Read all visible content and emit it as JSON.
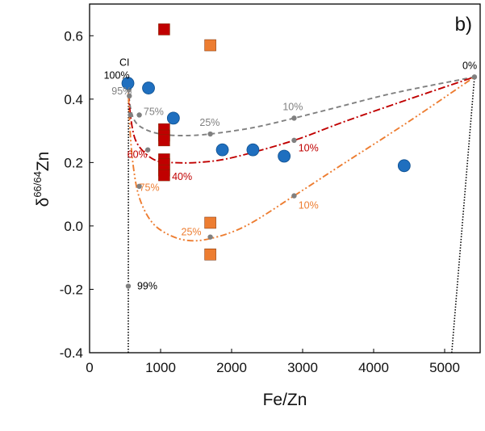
{
  "chart_data": {
    "type": "scatter",
    "panel_label": "b)",
    "xlabel": "Fe/Zn",
    "ylabel": "δ66/64Zn",
    "ylabel_parts": {
      "main": "δ",
      "sup": "66/64",
      "tail": "Zn"
    },
    "xlim": [
      0,
      5500
    ],
    "ylim": [
      -0.4,
      0.7
    ],
    "x_ticks": [
      0,
      1000,
      2000,
      3000,
      4000,
      5000
    ],
    "y_ticks": [
      0.6,
      0.4,
      0.2,
      0.0,
      -0.2,
      -0.4
    ],
    "x_tick_labels": [
      "0",
      "1000",
      "2000",
      "3000",
      "4000",
      "5000"
    ],
    "y_tick_labels": [
      "0.6",
      "0.4",
      "0.2",
      "0.0",
      "-0.2",
      "-0.4"
    ],
    "grid": false,
    "colors": {
      "blue": "#1f6fbf",
      "red": "#c00000",
      "orange": "#ed7d31",
      "gray": "#808080",
      "black": "#000000"
    },
    "series": [
      {
        "name": "blue circles",
        "marker": "circle",
        "color": "#1f6fbf",
        "points": [
          [
            540,
            0.45
          ],
          [
            830,
            0.435
          ],
          [
            1180,
            0.34
          ],
          [
            1870,
            0.24
          ],
          [
            2300,
            0.24
          ],
          [
            2740,
            0.22
          ],
          [
            4430,
            0.19
          ]
        ]
      },
      {
        "name": "red squares",
        "marker": "square",
        "color": "#c00000",
        "points": [
          [
            1050,
            0.62
          ],
          [
            1050,
            0.305
          ],
          [
            1050,
            0.285
          ],
          [
            1050,
            0.27
          ],
          [
            1050,
            0.21
          ],
          [
            1050,
            0.195
          ],
          [
            1050,
            0.175
          ],
          [
            1050,
            0.16
          ]
        ]
      },
      {
        "name": "orange squares",
        "marker": "square",
        "color": "#ed7d31",
        "points": [
          [
            1700,
            0.57
          ],
          [
            1700,
            0.01
          ],
          [
            1700,
            -0.09
          ]
        ]
      }
    ],
    "curves": [
      {
        "name": "gray mixing curve",
        "color": "#808080",
        "style": "dashed",
        "points": [
          [
            540,
            0.46
          ],
          [
            570,
            0.38
          ],
          [
            640,
            0.33
          ],
          [
            780,
            0.305
          ],
          [
            1000,
            0.29
          ],
          [
            1300,
            0.285
          ],
          [
            1700,
            0.29
          ],
          [
            2300,
            0.31
          ],
          [
            2880,
            0.34
          ],
          [
            3500,
            0.375
          ],
          [
            4300,
            0.42
          ],
          [
            5420,
            0.47
          ]
        ]
      },
      {
        "name": "red mixing curve",
        "color": "#c00000",
        "style": "dash-dot",
        "points": [
          [
            540,
            0.46
          ],
          [
            570,
            0.36
          ],
          [
            640,
            0.275
          ],
          [
            780,
            0.23
          ],
          [
            950,
            0.205
          ],
          [
            1150,
            0.2
          ],
          [
            1500,
            0.2
          ],
          [
            2000,
            0.215
          ],
          [
            2880,
            0.27
          ],
          [
            3600,
            0.33
          ],
          [
            4500,
            0.4
          ],
          [
            5420,
            0.47
          ]
        ]
      },
      {
        "name": "orange mixing curve",
        "color": "#ed7d31",
        "style": "dash-dot-dot",
        "points": [
          [
            540,
            0.46
          ],
          [
            570,
            0.3
          ],
          [
            620,
            0.18
          ],
          [
            700,
            0.09
          ],
          [
            850,
            0.02
          ],
          [
            1050,
            -0.02
          ],
          [
            1350,
            -0.045
          ],
          [
            1700,
            -0.04
          ],
          [
            2200,
            0.0
          ],
          [
            2880,
            0.095
          ],
          [
            3600,
            0.2
          ],
          [
            4500,
            0.33
          ],
          [
            5420,
            0.47
          ]
        ]
      }
    ],
    "boundary_lines": [
      {
        "name": "left endmember line",
        "points": [
          [
            545,
            -0.4
          ],
          [
            548,
            0.46
          ]
        ]
      },
      {
        "name": "right endmember line",
        "points": [
          [
            5100,
            -0.4
          ],
          [
            5420,
            0.47
          ]
        ]
      }
    ],
    "gray_points": [
      [
        545,
        0.46
      ],
      [
        555,
        0.43
      ],
      [
        560,
        0.41
      ],
      [
        575,
        0.35
      ],
      [
        700,
        0.35
      ],
      [
        820,
        0.24
      ],
      [
        700,
        0.125
      ],
      [
        1050,
        0.2
      ],
      [
        1700,
        0.29
      ],
      [
        2880,
        0.34
      ],
      [
        2880,
        0.27
      ],
      [
        2880,
        0.095
      ],
      [
        1700,
        -0.035
      ],
      [
        545,
        -0.19
      ],
      [
        5420,
        0.47
      ]
    ],
    "annotations": [
      {
        "text": "CI",
        "x": 420,
        "y": 0.505,
        "color": "#000000"
      },
      {
        "text": "100%",
        "x": 200,
        "y": 0.465,
        "color": "#000000"
      },
      {
        "text": "95%",
        "x": 310,
        "y": 0.415,
        "color": "#808080"
      },
      {
        "text": "75%",
        "x": 760,
        "y": 0.35,
        "color": "#808080"
      },
      {
        "text": "25%",
        "x": 1550,
        "y": 0.315,
        "color": "#808080"
      },
      {
        "text": "10%",
        "x": 2720,
        "y": 0.365,
        "color": "#808080"
      },
      {
        "text": "60%",
        "x": 530,
        "y": 0.215,
        "color": "#c00000"
      },
      {
        "text": "40%",
        "x": 1160,
        "y": 0.145,
        "color": "#c00000"
      },
      {
        "text": "10%",
        "x": 2940,
        "y": 0.235,
        "color": "#c00000"
      },
      {
        "text": "75%",
        "x": 700,
        "y": 0.11,
        "color": "#ed7d31"
      },
      {
        "text": "25%",
        "x": 1290,
        "y": -0.03,
        "color": "#ed7d31"
      },
      {
        "text": "10%",
        "x": 2940,
        "y": 0.055,
        "color": "#ed7d31"
      },
      {
        "text": "99%",
        "x": 670,
        "y": -0.2,
        "color": "#000000"
      },
      {
        "text": "0%",
        "x": 5250,
        "y": 0.495,
        "color": "#000000"
      }
    ]
  }
}
